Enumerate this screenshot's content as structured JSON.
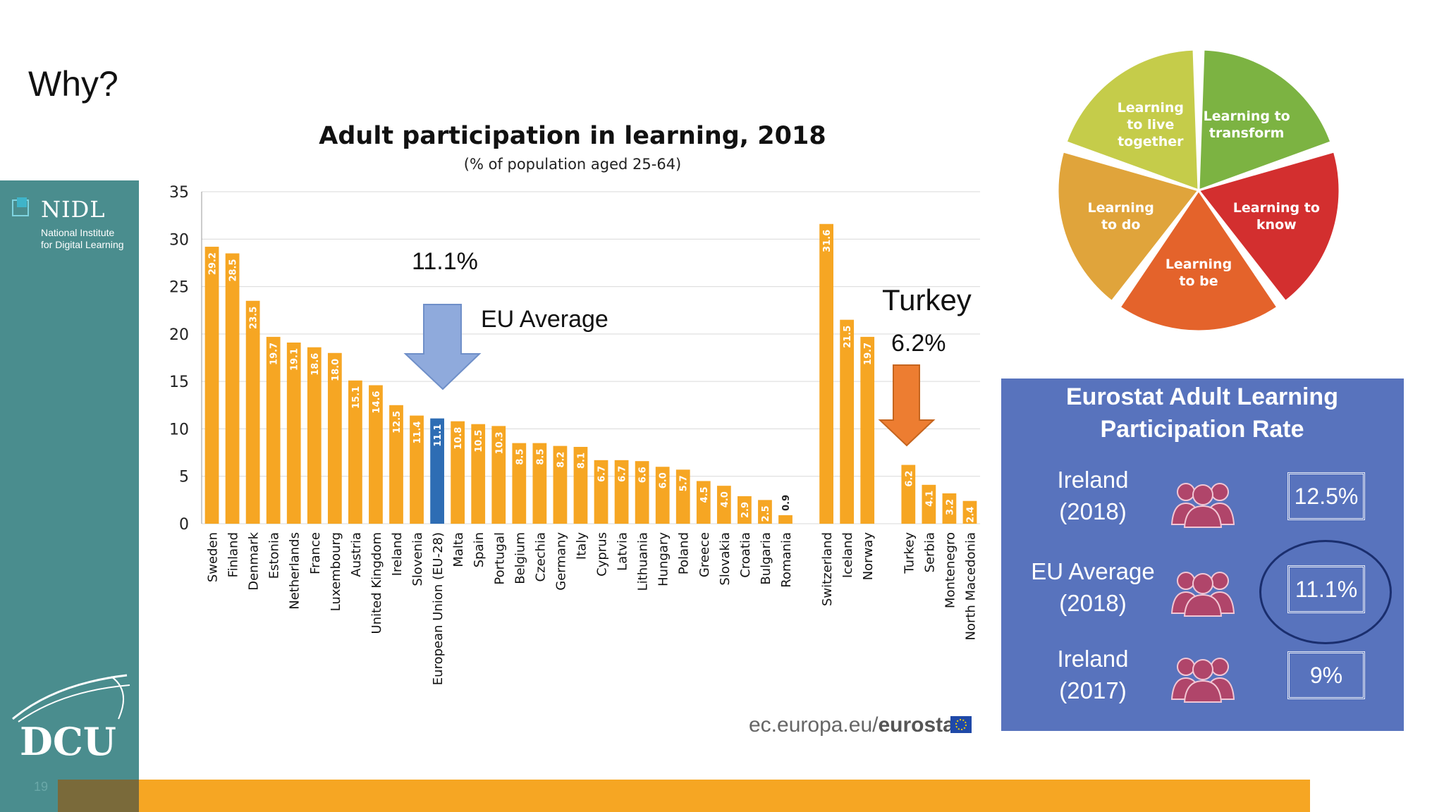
{
  "slide": {
    "title": "Why?",
    "number": "19"
  },
  "logos": {
    "nidl_name": "NIDL",
    "nidl_line1": "National Institute",
    "nidl_line2": "for Digital Learning",
    "dcu": "DCU"
  },
  "annotations": {
    "eu_pct": "11.1%",
    "eu_avg": "EU Average",
    "turkey": "Turkey",
    "turkey_pct": "6.2%"
  },
  "source": {
    "prefix": "ec.europa.eu/",
    "bold": "eurostat"
  },
  "pillars": [
    {
      "line1": "Learning to",
      "line2": "transform",
      "color": "#7cb342"
    },
    {
      "line1": "Learning to",
      "line2": "know",
      "color": "#d32f2f"
    },
    {
      "line1": "Learning",
      "line2": "to be",
      "color": "#e4632b"
    },
    {
      "line1": "Learning",
      "line2": "to do",
      "color": "#e0a43b"
    },
    {
      "line1": "Learning",
      "line2": "to live",
      "line3": "together",
      "color": "#c5cc4a"
    }
  ],
  "panel": {
    "title_line1": "Eurostat Adult Learning",
    "title_line2": "Participation Rate",
    "rows": [
      {
        "label1": "Ireland",
        "label2": "(2018)",
        "value": "12.5%"
      },
      {
        "label1": "EU Average",
        "label2": "(2018)",
        "value": "11.1%"
      },
      {
        "label1": "Ireland",
        "label2": "(2017)",
        "value": "9%"
      }
    ]
  },
  "colors": {
    "bar": "#f6a623",
    "highlight_bar": "#2e6db4",
    "eu_arrow": "#8faadc",
    "turkey_arrow": "#ed7d31",
    "panel": "#5873bd",
    "sidebar": "#4a8d8e"
  },
  "chart_data": {
    "type": "bar",
    "title": "Adult participation in learning, 2018",
    "subtitle": "(% of population aged 25-64)",
    "ylim": [
      0,
      35
    ],
    "yticks": [
      0,
      5,
      10,
      15,
      20,
      25,
      30,
      35
    ],
    "grid": true,
    "categories": [
      "Sweden",
      "Finland",
      "Denmark",
      "Estonia",
      "Netherlands",
      "France",
      "Luxembourg",
      "Austria",
      "United Kingdom",
      "Ireland",
      "Slovenia",
      "European Union (EU-28)",
      "Malta",
      "Spain",
      "Portugal",
      "Belgium",
      "Czechia",
      "Germany",
      "Italy",
      "Cyprus",
      "Latvia",
      "Lithuania",
      "Hungary",
      "Poland",
      "Greece",
      "Slovakia",
      "Croatia",
      "Bulgaria",
      "Romania",
      "",
      "Switzerland",
      "Iceland",
      "Norway",
      "",
      "Turkey",
      "Serbia",
      "Montenegro",
      "North Macedonia"
    ],
    "values": [
      29.2,
      28.5,
      23.5,
      19.7,
      19.1,
      18.6,
      18.0,
      15.1,
      14.6,
      12.5,
      11.4,
      11.1,
      10.8,
      10.5,
      10.3,
      8.5,
      8.5,
      8.2,
      8.1,
      6.7,
      6.7,
      6.6,
      6.0,
      5.7,
      4.5,
      4.0,
      2.9,
      2.5,
      0.9,
      null,
      31.6,
      21.5,
      19.7,
      null,
      6.2,
      4.1,
      3.2,
      2.4
    ],
    "data_labels": [
      "29.2",
      "28.5",
      "23.5",
      "19.7",
      "19.1",
      "18.6",
      "18.0",
      "15.1",
      "14.6",
      "12.5",
      "11.4",
      "11.1",
      "10.8",
      "10.5",
      "10.3",
      "8.5",
      "8.5",
      "8.2",
      "8.1",
      "6.7",
      "6.7",
      "6.6",
      "6.0",
      "5.7",
      "4.5",
      "4.0",
      "2.9",
      "2.5",
      "0.9",
      "",
      "31.6",
      "21.5",
      "19.7",
      "",
      "6.2",
      "4.1",
      "3.2",
      "2.4"
    ],
    "highlight": "European Union (EU-28)"
  }
}
